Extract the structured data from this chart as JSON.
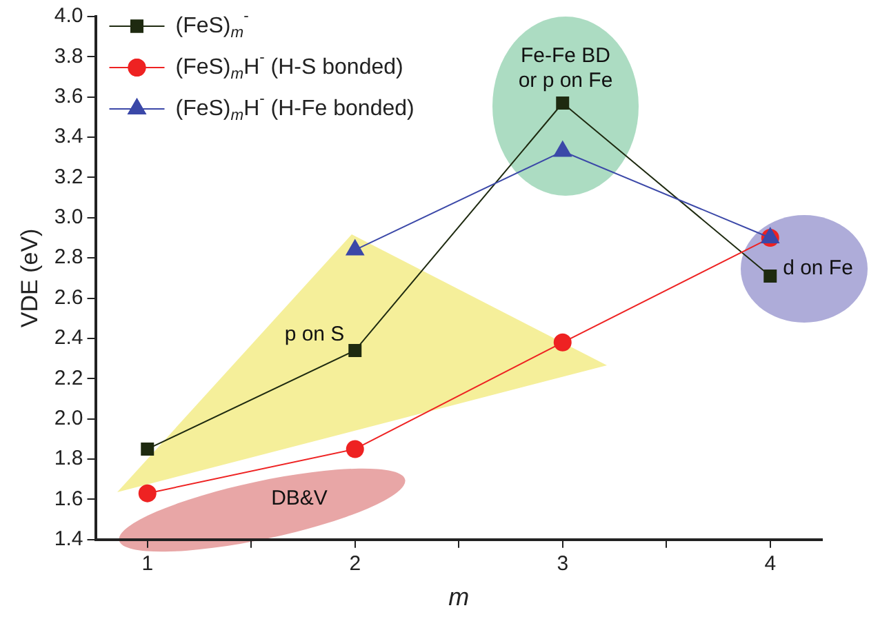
{
  "chart_data": {
    "type": "line",
    "xlabel": "m",
    "ylabel": "VDE (eV)",
    "series": [
      {
        "name": "(FeS)$_{m}$$^{-}$",
        "color": "#1e2a10",
        "marker": "square",
        "x": [
          1,
          2,
          3,
          4
        ],
        "values": [
          1.85,
          2.34,
          3.57,
          2.71
        ]
      },
      {
        "name": "(FeS)$_{m}$H$^{-}$ (H-S bonded)",
        "color": "#ee2222",
        "marker": "circle",
        "x": [
          1,
          2,
          3,
          4
        ],
        "values": [
          1.63,
          1.85,
          2.38,
          2.9
        ]
      },
      {
        "name": "(FeS)$_{m}$H$^{-}$ (H-Fe bonded)",
        "color": "#3b48a8",
        "marker": "triangle",
        "x": [
          2,
          3,
          4
        ],
        "values": [
          2.84,
          3.33,
          2.9
        ]
      }
    ],
    "xlim": [
      0.75,
      4.25
    ],
    "xticks": [
      1,
      {
        "value": 1.5,
        "label": null
      },
      2,
      {
        "value": 2.5,
        "label": null
      },
      3,
      {
        "value": 3.5,
        "label": null
      },
      4
    ],
    "ylim": [
      1.4,
      4.0
    ],
    "yticks": [
      1.4,
      1.6,
      1.8,
      {
        "value": 2.0,
        "label": "2.0"
      },
      2.2,
      2.4,
      2.6,
      2.8,
      {
        "value": 3.0,
        "label": "3.0"
      },
      3.2,
      3.4,
      3.6,
      3.8,
      {
        "value": 4.0,
        "label": "4.0"
      }
    ],
    "grid": false,
    "legend": "top left",
    "line_style": "solid",
    "annotations": [
      "p on S",
      "DB&V",
      "Fe-Fe BD or p on Fe",
      "d on Fe"
    ]
  }
}
